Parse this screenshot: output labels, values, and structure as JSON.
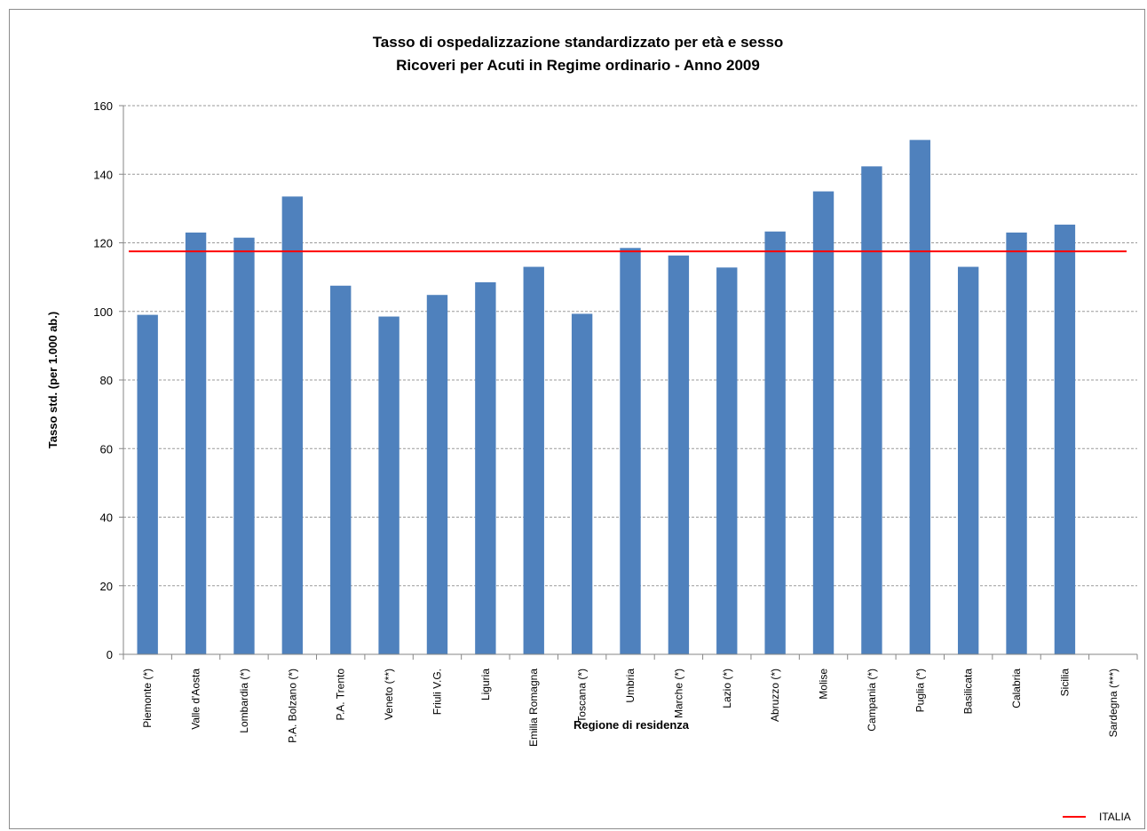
{
  "chart_data": {
    "type": "bar",
    "title": "Tasso di ospedalizzazione standardizzato per età e sesso",
    "subtitle": "Ricoveri per Acuti in Regime ordinario - Anno 2009",
    "xlabel": "Regione di residenza",
    "ylabel": "Tasso std. (per 1.000 ab.)",
    "ylim": [
      0,
      160
    ],
    "yticks": [
      "0",
      "20",
      "40",
      "60",
      "80",
      "100",
      "120",
      "140",
      "160"
    ],
    "grid": true,
    "legend_position": "bottom-right",
    "categories": [
      "Piemonte (*)",
      "Valle d'Aosta",
      "Lombardia (*)",
      "P.A. Bolzano (*)",
      "P.A. Trento",
      "Veneto (**)",
      "Friuli V.G.",
      "Liguria",
      "Emilia Romagna",
      "Toscana (*)",
      "Umbria",
      "Marche (*)",
      "Lazio (*)",
      "Abruzzo (*)",
      "Molise",
      "Campania (*)",
      "Puglia (*)",
      "Basilicata",
      "Calabria",
      "Sicilia",
      "Sardegna (***)"
    ],
    "series": [
      {
        "type": "bar",
        "color": "#4f81bd",
        "values": [
          99.0,
          123.0,
          121.5,
          133.5,
          107.5,
          98.5,
          104.8,
          108.5,
          113.0,
          99.3,
          118.5,
          116.3,
          112.8,
          123.3,
          135.0,
          142.3,
          150.0,
          113.0,
          123.0,
          125.3,
          null
        ]
      },
      {
        "name": "ITALIA",
        "type": "line",
        "color": "#ff0000",
        "value": 117.5
      }
    ]
  }
}
